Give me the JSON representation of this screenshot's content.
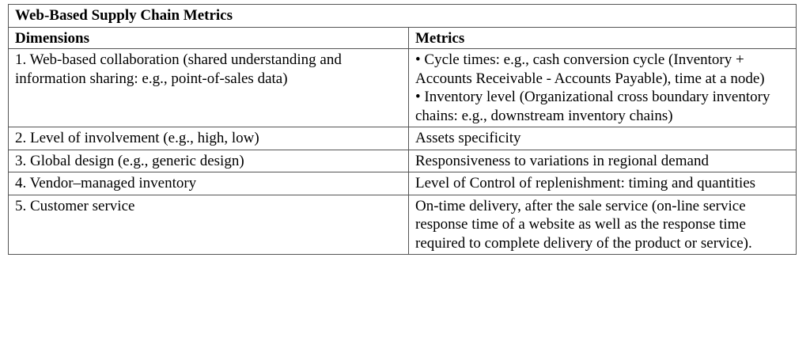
{
  "table": {
    "title": "Web-Based Supply Chain Metrics",
    "headers": [
      "Dimensions",
      "Metrics"
    ],
    "rows": [
      {
        "dimension": "1. Web-based collaboration (shared understanding and information sharing: e.g., point-of-sales data)",
        "metrics": [
          "• Cycle times: e.g., cash conversion cycle (Inventory + Accounts Receivable - Accounts Payable), time at a node)",
          "• Inventory level (Organizational cross boundary inventory chains: e.g., downstream inventory chains)"
        ]
      },
      {
        "dimension": "2. Level of involvement (e.g., high, low)",
        "metrics": [
          "Assets specificity"
        ]
      },
      {
        "dimension": "3. Global design (e.g., generic design)",
        "metrics": [
          "Responsiveness to variations in regional demand"
        ]
      },
      {
        "dimension": "4. Vendor–managed inventory",
        "metrics": [
          "Level of Control of replenishment: timing and quantities"
        ]
      },
      {
        "dimension": "5. Customer service",
        "metrics": [
          "On-time delivery, after the sale service (on-line service response time of a website as well as the response time required to complete delivery of the product or service)."
        ]
      }
    ]
  }
}
